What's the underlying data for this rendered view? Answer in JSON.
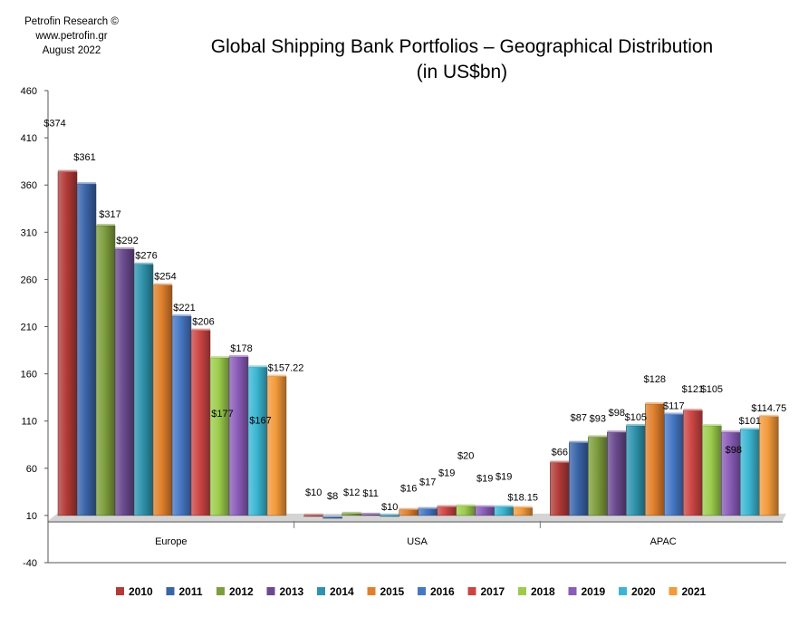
{
  "source": {
    "line1": "Petrofin  Research ©",
    "line2": "www.petrofin.gr",
    "line3": "August 2022"
  },
  "chart_data": {
    "type": "bar",
    "title": "Global Shipping Bank Portfolios – Geographical Distribution",
    "subtitle": "(in US$bn)",
    "categories": [
      "Europe",
      "USA",
      "APAC"
    ],
    "ylim": [
      -40,
      460
    ],
    "yticks": [
      "-40",
      "10",
      "60",
      "110",
      "160",
      "210",
      "260",
      "310",
      "360",
      "410",
      "460"
    ],
    "grid": false,
    "legend": "bottom",
    "series": [
      {
        "name": "2010",
        "color": "#b23b38",
        "values": [
          374,
          10,
          66
        ],
        "labels": [
          "$374",
          "$10",
          "$66"
        ]
      },
      {
        "name": "2011",
        "color": "#3a64a8",
        "values": [
          361,
          8,
          87
        ],
        "labels": [
          "$361",
          "$8",
          "$87"
        ]
      },
      {
        "name": "2012",
        "color": "#7e9e3e",
        "values": [
          317,
          12,
          93
        ],
        "labels": [
          "$317",
          "$12",
          "$93"
        ]
      },
      {
        "name": "2013",
        "color": "#6a4a8e",
        "values": [
          292,
          11,
          98
        ],
        "labels": [
          "$292",
          "$11",
          "$98"
        ]
      },
      {
        "name": "2014",
        "color": "#2f93ad",
        "values": [
          276,
          10,
          105
        ],
        "labels": [
          "$276",
          "$10",
          "$105"
        ]
      },
      {
        "name": "2015",
        "color": "#e0802c",
        "values": [
          254,
          16,
          128
        ],
        "labels": [
          "$254",
          "$16",
          "$128"
        ]
      },
      {
        "name": "2016",
        "color": "#4677c4",
        "values": [
          221,
          17,
          117
        ],
        "labels": [
          "$221",
          "$17",
          "$117"
        ]
      },
      {
        "name": "2017",
        "color": "#cc4543",
        "values": [
          206,
          19,
          121
        ],
        "labels": [
          "$206",
          "$19",
          "$121"
        ]
      },
      {
        "name": "2018",
        "color": "#9ccc4c",
        "values": [
          177,
          20,
          105
        ],
        "labels": [
          "$177",
          "$20",
          "$105"
        ]
      },
      {
        "name": "2019",
        "color": "#8a5cb8",
        "values": [
          178,
          19,
          98
        ],
        "labels": [
          "$178",
          "$19",
          "$98"
        ]
      },
      {
        "name": "2020",
        "color": "#3bb6d2",
        "values": [
          167,
          19,
          101
        ],
        "labels": [
          "$167",
          "$19",
          "$101"
        ]
      },
      {
        "name": "2021",
        "color": "#f39a3b",
        "values": [
          157.22,
          18.15,
          114.75
        ],
        "labels": [
          "$157.22",
          "$18.15",
          "$114.75"
        ]
      }
    ]
  }
}
